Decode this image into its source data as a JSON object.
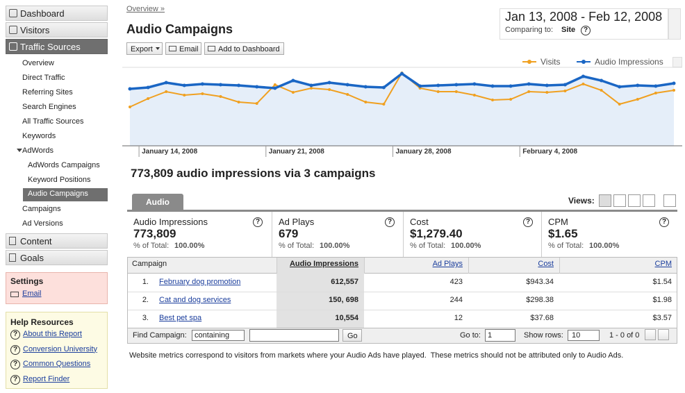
{
  "nav_top": [
    "Dashboard",
    "Visitors",
    "Traffic Sources"
  ],
  "traffic_sub": [
    "Overview",
    "Direct Traffic",
    "Referring Sites",
    "Search Engines",
    "All Traffic Sources",
    "Keywords"
  ],
  "adwords": {
    "label": "AdWords",
    "items": [
      "AdWords Campaigns",
      "Keyword Positions",
      "Audio Campaigns"
    ]
  },
  "traffic_sub_2": [
    "Campaigns",
    "Ad Versions"
  ],
  "nav_bottom": [
    "Content",
    "Goals"
  ],
  "settings": {
    "title": "Settings",
    "links": [
      "Email"
    ]
  },
  "help": {
    "title": "Help Resources",
    "links": [
      "About this Report",
      "Conversion University",
      "Common Questions",
      "Report Finder"
    ]
  },
  "breadcrumb": "Overview »",
  "title": "Audio Campaigns",
  "toolbar": [
    "Export",
    "Email",
    "Add to Dashboard"
  ],
  "date_range": "Jan 13, 2008 - Feb 12, 2008",
  "comparing_label": "Comparing to:",
  "comparing_value": "Site",
  "chart_data": {
    "type": "line",
    "categories": [
      null,
      "January 14, 2008",
      null,
      null,
      null,
      null,
      null,
      null,
      "January 21, 2008",
      null,
      null,
      null,
      null,
      null,
      null,
      "January 28, 2008",
      null,
      null,
      null,
      null,
      null,
      null,
      "February 4, 2008",
      null,
      null,
      null,
      null,
      null,
      null,
      null,
      null
    ],
    "series": [
      {
        "name": "Visits",
        "color": "#f0a020",
        "values": [
          56,
          68,
          78,
          73,
          75,
          71,
          63,
          61,
          88,
          77,
          83,
          81,
          74,
          63,
          60,
          105,
          83,
          78,
          78,
          73,
          66,
          67,
          78,
          77,
          79,
          89,
          80,
          60,
          67,
          76,
          80
        ]
      },
      {
        "name": "Audio Impressions",
        "color": "#1a66c4",
        "values": [
          82,
          84,
          91,
          87,
          89,
          88,
          87,
          85,
          83,
          94,
          87,
          91,
          88,
          85,
          84,
          104,
          86,
          87,
          88,
          89,
          86,
          86,
          89,
          87,
          88,
          100,
          94,
          85,
          87,
          86,
          90
        ]
      }
    ]
  },
  "summary": "773,809 audio impressions via 3 campaigns",
  "tab": "Audio",
  "views_label": "Views:",
  "metrics": [
    {
      "label": "Audio Impressions",
      "value": "773,809",
      "total_label": "% of Total:",
      "total": "100.00%"
    },
    {
      "label": "Ad Plays",
      "value": "679",
      "total_label": "% of Total:",
      "total": "100.00%"
    },
    {
      "label": "Cost",
      "value": "$1,279.40",
      "total_label": "% of Total:",
      "total": "100.00%"
    },
    {
      "label": "CPM",
      "value": "$1.65",
      "total_label": "% of Total:",
      "total": "100.00%"
    }
  ],
  "table": {
    "headers": [
      "Campaign",
      "Audio Impressions",
      "Ad Plays",
      "Cost",
      "CPM"
    ],
    "rows": [
      [
        "1.",
        "February dog promotion",
        "612,557",
        "423",
        "$943.34",
        "$1.54"
      ],
      [
        "2.",
        "Cat and dog services",
        "150, 698",
        "244",
        "$298.38",
        "$1.98"
      ],
      [
        "3.",
        "Best pet spa",
        "10,554",
        "12",
        "$37.68",
        "$3.57"
      ]
    ]
  },
  "footer": {
    "find_label": "Find Campaign:",
    "filter": "containing",
    "go": "Go",
    "goto_label": "Go to:",
    "goto_value": "1",
    "rows_label": "Show rows:",
    "rows_value": "10",
    "range": "1 - 0 of 0"
  },
  "note": "Website metrics correspond to visitors from markets where your Audio Ads have played.  These metrics should not be attributed only to Audio Ads."
}
